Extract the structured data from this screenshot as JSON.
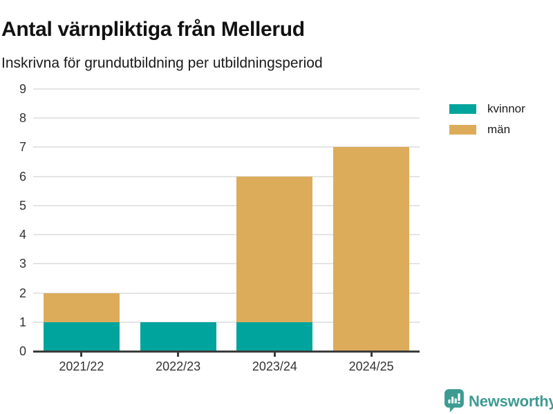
{
  "chart_data": {
    "type": "bar",
    "stacked": true,
    "title": "Antal värnpliktiga från Mellerud",
    "subtitle": "Inskrivna för grundutbildning per utbildningsperiod",
    "categories": [
      "2021/22",
      "2022/23",
      "2023/24",
      "2024/25"
    ],
    "series": [
      {
        "name": "kvinnor",
        "color": "#00A49D",
        "values": [
          1,
          1,
          1,
          0
        ]
      },
      {
        "name": "män",
        "color": "#DCAC5A",
        "values": [
          1,
          0,
          5,
          7
        ]
      }
    ],
    "ylim": [
      0,
      9
    ],
    "yticks": [
      0,
      1,
      2,
      3,
      4,
      5,
      6,
      7,
      8,
      9
    ],
    "xlabel": "",
    "ylabel": "",
    "grid": true,
    "legend_position": "top-right",
    "gridline_color": "#E4E4E4",
    "axis_color": "#3B3B3B",
    "tick_text_color": "#333333"
  },
  "footer": {
    "brand": "Newsworthy",
    "brand_color": "#3D9B92",
    "icon": "bar-chart-speech-bubble"
  }
}
